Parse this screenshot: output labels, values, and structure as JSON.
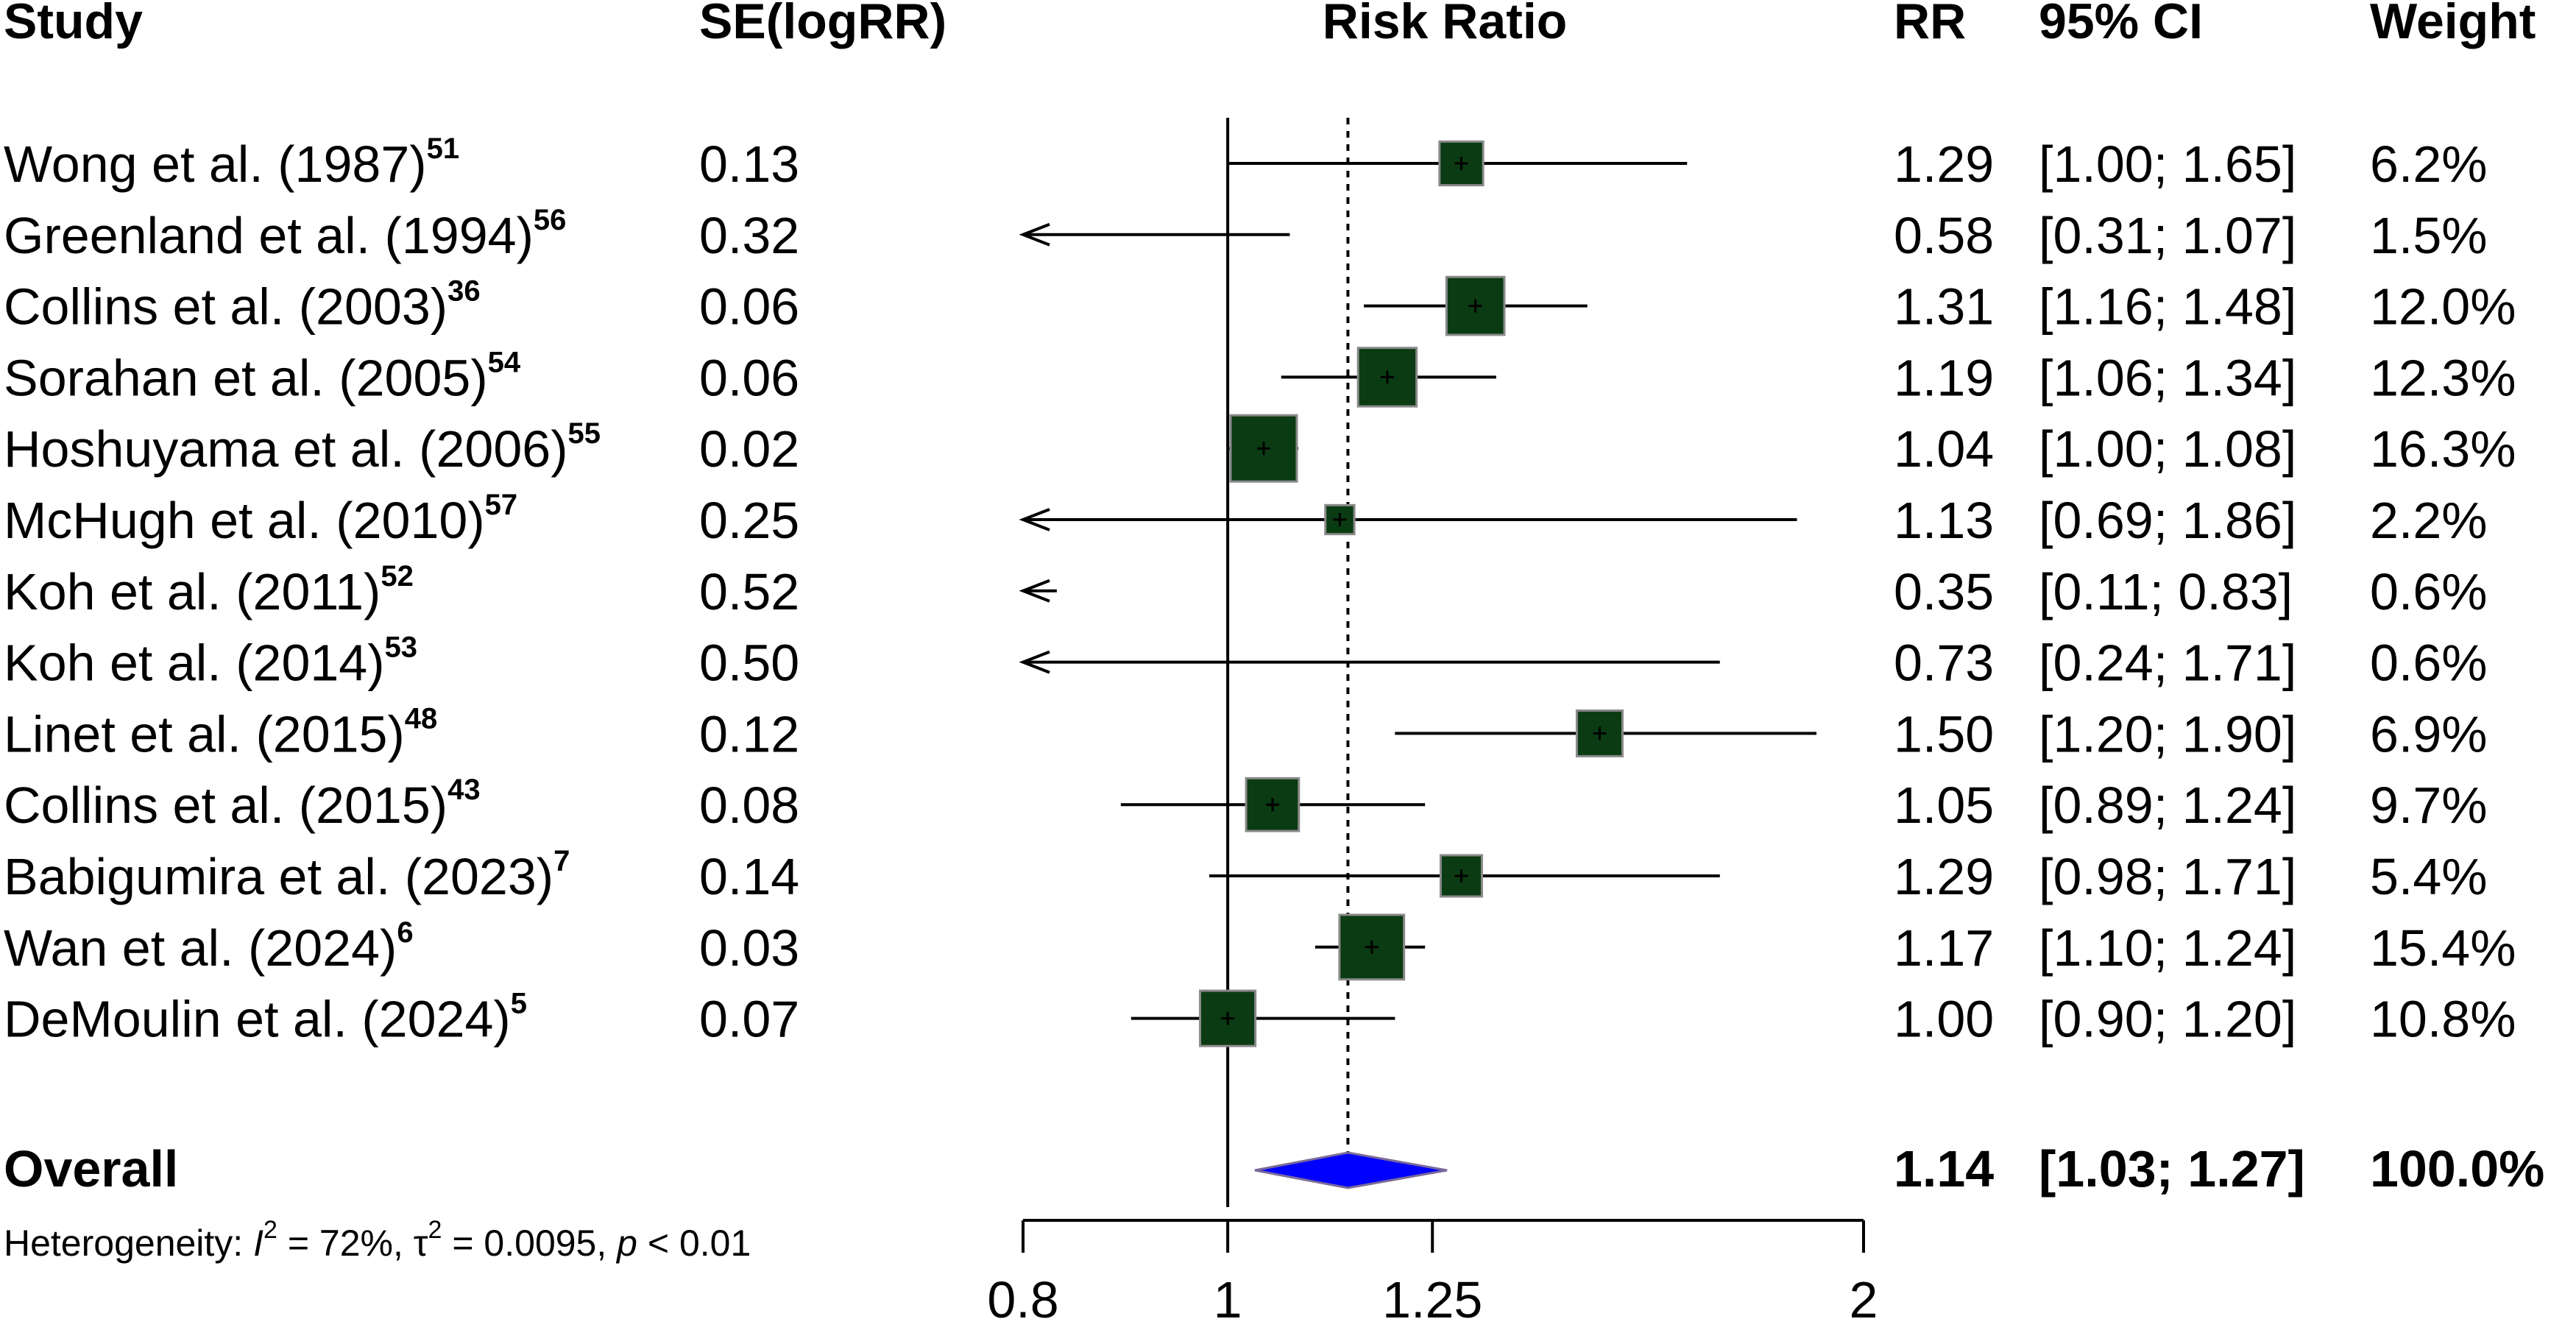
{
  "headers": {
    "study": "Study",
    "se": "SE(logRR)",
    "axis": "Risk Ratio",
    "rr": "RR",
    "ci": "95% CI",
    "weight": "Weight"
  },
  "overall": {
    "label": "Overall",
    "rr_text": "1.14",
    "ci_text": "[1.03; 1.27]",
    "weight_text": "100.0%"
  },
  "heterogeneity": {
    "prefix": "Heterogeneity: ",
    "i2_symbol": "I",
    "i2_exp": "2",
    "i2_value": " = 72%, ",
    "tau_symbol": "τ",
    "tau_exp": "2",
    "tau_value": " = 0.0095, ",
    "p_symbol": "p",
    "p_value": " < 0.01"
  },
  "chart_data": {
    "type": "forest",
    "title": "",
    "xlabel": "Risk Ratio",
    "x_scale": "log",
    "xlim": [
      0.8,
      2
    ],
    "xticks": [
      0.8,
      1,
      1.25,
      2
    ],
    "xtick_labels": [
      "0.8",
      "1",
      "1.25",
      "2"
    ],
    "reference_line": 1,
    "summary_line": 1.14,
    "colors": {
      "square": "#0b3b12",
      "square_edge": "#8a8a8a",
      "diamond": "#0000ff",
      "line": "#000000"
    },
    "studies": [
      {
        "study": "Wong et al. (1987)",
        "ref": "51",
        "se": "0.13",
        "rr": 1.29,
        "lo": 1.0,
        "hi": 1.65,
        "weight": 6.2,
        "rr_text": "1.29",
        "ci_text": "[1.00; 1.65]",
        "weight_text": "6.2%"
      },
      {
        "study": "Greenland et al. (1994)",
        "ref": "56",
        "se": "0.32",
        "rr": 0.58,
        "lo": 0.31,
        "hi": 1.07,
        "weight": 1.5,
        "rr_text": "0.58",
        "ci_text": "[0.31; 1.07]",
        "weight_text": "1.5%"
      },
      {
        "study": "Collins et al. (2003)",
        "ref": "36",
        "se": "0.06",
        "rr": 1.31,
        "lo": 1.16,
        "hi": 1.48,
        "weight": 12.0,
        "rr_text": "1.31",
        "ci_text": "[1.16; 1.48]",
        "weight_text": "12.0%"
      },
      {
        "study": "Sorahan et al. (2005)",
        "ref": "54",
        "se": "0.06",
        "rr": 1.19,
        "lo": 1.06,
        "hi": 1.34,
        "weight": 12.3,
        "rr_text": "1.19",
        "ci_text": "[1.06; 1.34]",
        "weight_text": "12.3%"
      },
      {
        "study": "Hoshuyama et al. (2006)",
        "ref": "55",
        "se": "0.02",
        "rr": 1.04,
        "lo": 1.0,
        "hi": 1.08,
        "weight": 16.3,
        "rr_text": "1.04",
        "ci_text": "[1.00; 1.08]",
        "weight_text": "16.3%"
      },
      {
        "study": "McHugh et al. (2010)",
        "ref": "57",
        "se": "0.25",
        "rr": 1.13,
        "lo": 0.69,
        "hi": 1.86,
        "weight": 2.2,
        "rr_text": "1.13",
        "ci_text": "[0.69; 1.86]",
        "weight_text": "2.2%"
      },
      {
        "study": "Koh et al. (2011)",
        "ref": "52",
        "se": "0.52",
        "rr": 0.35,
        "lo": 0.11,
        "hi": 0.83,
        "weight": 0.6,
        "rr_text": "0.35",
        "ci_text": "[0.11; 0.83]",
        "weight_text": "0.6%"
      },
      {
        "study": "Koh et al. (2014)",
        "ref": "53",
        "se": "0.50",
        "rr": 0.73,
        "lo": 0.24,
        "hi": 1.71,
        "weight": 0.6,
        "rr_text": "0.73",
        "ci_text": "[0.24; 1.71]",
        "weight_text": "0.6%"
      },
      {
        "study": "Linet et al. (2015)",
        "ref": "48",
        "se": "0.12",
        "rr": 1.5,
        "lo": 1.2,
        "hi": 1.9,
        "weight": 6.9,
        "rr_text": "1.50",
        "ci_text": "[1.20; 1.90]",
        "weight_text": "6.9%"
      },
      {
        "study": "Collins et al. (2015)",
        "ref": "43",
        "se": "0.08",
        "rr": 1.05,
        "lo": 0.89,
        "hi": 1.24,
        "weight": 9.7,
        "rr_text": "1.05",
        "ci_text": "[0.89; 1.24]",
        "weight_text": "9.7%"
      },
      {
        "study": "Babigumira et al. (2023)",
        "ref": "7",
        "se": "0.14",
        "rr": 1.29,
        "lo": 0.98,
        "hi": 1.71,
        "weight": 5.4,
        "rr_text": "1.29",
        "ci_text": "[0.98; 1.71]",
        "weight_text": "5.4%"
      },
      {
        "study": "Wan et al. (2024)",
        "ref": "6",
        "se": "0.03",
        "rr": 1.17,
        "lo": 1.1,
        "hi": 1.24,
        "weight": 15.4,
        "rr_text": "1.17",
        "ci_text": "[1.10; 1.24]",
        "weight_text": "15.4%"
      },
      {
        "study": "DeMoulin et al. (2024)",
        "ref": "5",
        "se": "0.07",
        "rr": 1.0,
        "lo": 0.9,
        "hi": 1.2,
        "weight": 10.8,
        "rr_text": "1.00",
        "ci_text": "[0.90; 1.20]",
        "weight_text": "10.8%"
      }
    ],
    "overall": {
      "rr": 1.14,
      "lo": 1.03,
      "hi": 1.27,
      "weight": 100.0
    }
  }
}
